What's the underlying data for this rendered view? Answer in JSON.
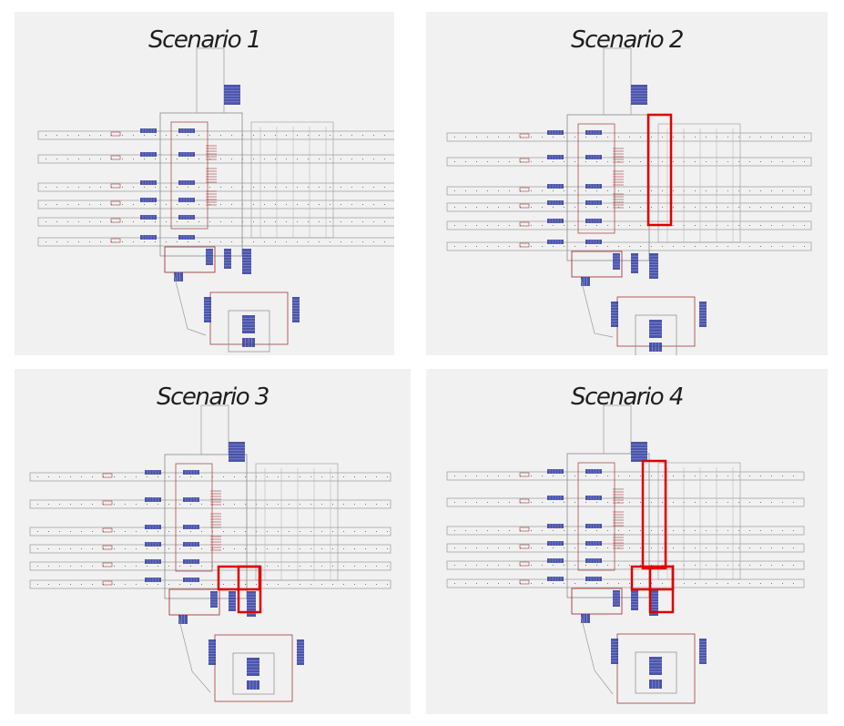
{
  "figure": {
    "panels": [
      {
        "title": "Scenario 1",
        "highlight_regions": []
      },
      {
        "title": "Scenario 2",
        "highlight_regions": [
          "concourse-stair-column"
        ]
      },
      {
        "title": "Scenario 3",
        "highlight_regions": [
          "lower-stair-block"
        ]
      },
      {
        "title": "Scenario 4",
        "highlight_regions": [
          "concourse-stair-column",
          "lower-stair-block"
        ]
      }
    ],
    "colors": {
      "panel_bg": "#f1f1f1",
      "platform_line": "#9a9a9a",
      "stair_blue": "#2f3a9e",
      "wall_red": "#a23a3a",
      "highlight_red": "#e00000"
    }
  }
}
